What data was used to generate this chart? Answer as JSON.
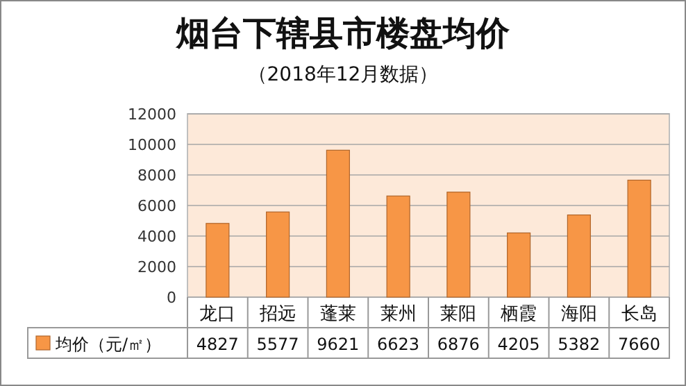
{
  "chart_data": {
    "type": "bar",
    "title": "烟台下辖县市楼盘均价",
    "subtitle": "（2018年12月数据）",
    "categories": [
      "龙口",
      "招远",
      "蓬莱",
      "莱州",
      "莱阳",
      "栖霞",
      "海阳",
      "长岛"
    ],
    "series": [
      {
        "name": "均价（元/㎡）",
        "color": "#f79646",
        "values": [
          4827,
          5577,
          9621,
          6623,
          6876,
          4205,
          5382,
          7660
        ]
      }
    ],
    "ylim": [
      0,
      12000
    ],
    "yticks": [
      0,
      2000,
      4000,
      6000,
      8000,
      10000,
      12000
    ],
    "grid": "y",
    "data_labels": true,
    "legend": "bottom"
  }
}
